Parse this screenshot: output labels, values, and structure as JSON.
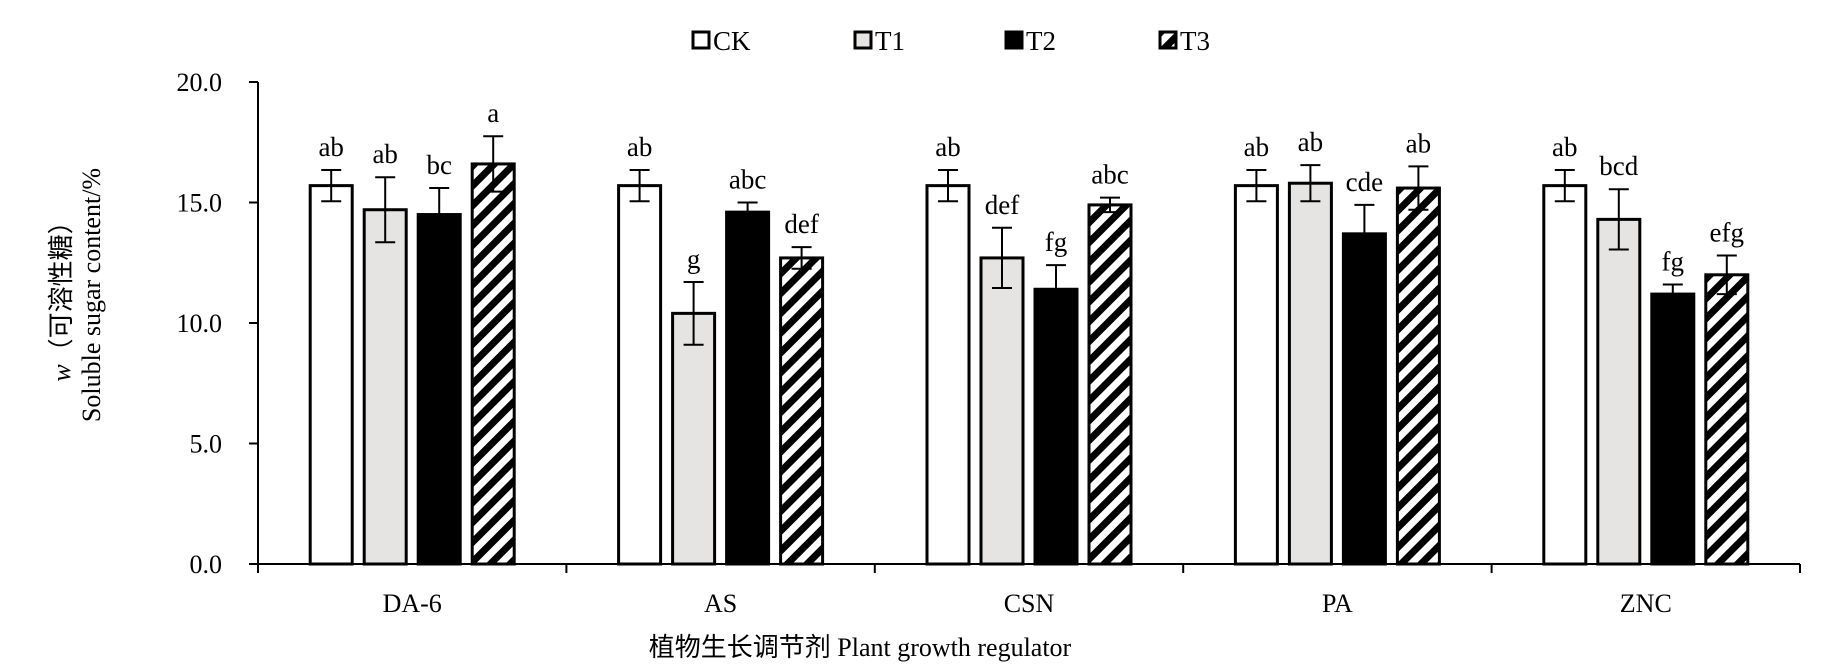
{
  "chart_data": {
    "type": "bar",
    "title": "",
    "categories": [
      "DA-6",
      "AS",
      "CSN",
      "PA",
      "ZNC"
    ],
    "series": [
      {
        "name": "CK",
        "pattern": "white",
        "values": [
          15.7,
          15.7,
          15.7,
          15.7,
          15.7
        ],
        "errors": [
          0.65,
          0.65,
          0.65,
          0.65,
          0.65
        ],
        "letters": [
          "ab",
          "ab",
          "ab",
          "ab",
          "ab"
        ]
      },
      {
        "name": "T1",
        "pattern": "lightgray",
        "values": [
          14.7,
          10.4,
          12.7,
          15.8,
          14.3
        ],
        "errors": [
          1.35,
          1.3,
          1.25,
          0.75,
          1.25
        ],
        "letters": [
          "ab",
          "g",
          "def",
          "ab",
          "bcd"
        ]
      },
      {
        "name": "T2",
        "pattern": "black",
        "values": [
          14.5,
          14.6,
          11.4,
          13.7,
          11.2
        ],
        "errors": [
          1.1,
          0.4,
          1.0,
          1.2,
          0.4
        ],
        "letters": [
          "bc",
          "abc",
          "fg",
          "cde",
          "fg"
        ]
      },
      {
        "name": "T3",
        "pattern": "hatch",
        "values": [
          16.6,
          12.7,
          14.9,
          15.6,
          12.0
        ],
        "errors": [
          1.15,
          0.45,
          0.3,
          0.9,
          0.8
        ],
        "letters": [
          "a",
          "def",
          "abc",
          "ab",
          "efg"
        ]
      }
    ],
    "ylim": [
      0,
      20
    ],
    "yticks": [
      "0.0",
      "5.0",
      "10.0",
      "15.0",
      "20.0"
    ],
    "ylabel_line1_italic": "w",
    "ylabel_line1": "（可溶性糖）",
    "ylabel_line2": "Soluble sugar content/%",
    "xlabel": "植物生长调节剂 Plant growth regulator",
    "legend_position": "top-center",
    "grid": false,
    "colors": {
      "white": "#ffffff",
      "lightgray": "#e6e4e2",
      "black": "#000000",
      "outline": "#000000"
    }
  }
}
